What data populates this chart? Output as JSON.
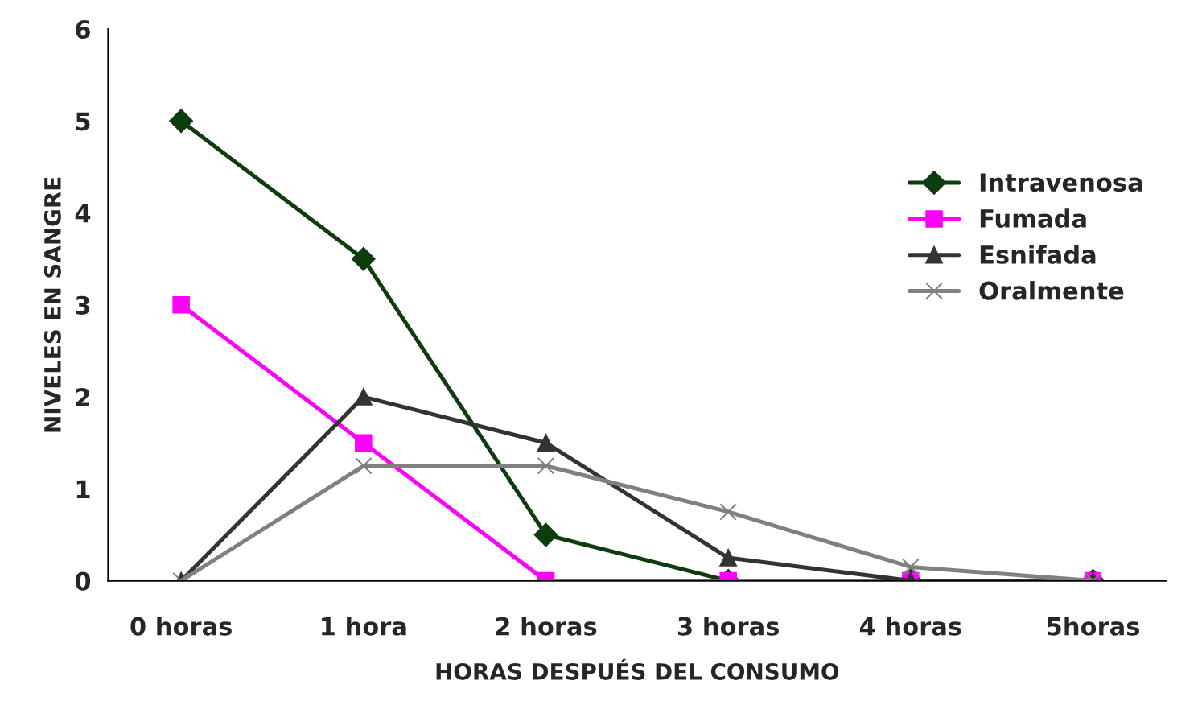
{
  "chart_data": {
    "type": "line",
    "xlabel": "HORAS DESPUÉS DEL CONSUMO",
    "ylabel": "NIVELES EN SANGRE",
    "categories": [
      "0 horas",
      "1 hora",
      "2 horas",
      "3 horas",
      "4 horas",
      "5horas"
    ],
    "series": [
      {
        "name": "Intravenosa",
        "color": "#0d3d0d",
        "marker": "diamond",
        "values": [
          5,
          3.5,
          0.5,
          0,
          0,
          0
        ]
      },
      {
        "name": "Fumada",
        "color": "#ff00ff",
        "marker": "square",
        "values": [
          3,
          1.5,
          0,
          0,
          0,
          0
        ]
      },
      {
        "name": "Esnifada",
        "color": "#333333",
        "marker": "triangle",
        "values": [
          0,
          2,
          1.5,
          0.25,
          0,
          0
        ]
      },
      {
        "name": "Oralmente",
        "color": "#808080",
        "marker": "cross",
        "values": [
          0,
          1.25,
          1.25,
          0.75,
          0.15,
          0
        ]
      }
    ],
    "ylim": [
      0,
      6
    ],
    "yticks": [
      0,
      1,
      2,
      3,
      4,
      5,
      6
    ],
    "grid": false,
    "legend": "right"
  }
}
